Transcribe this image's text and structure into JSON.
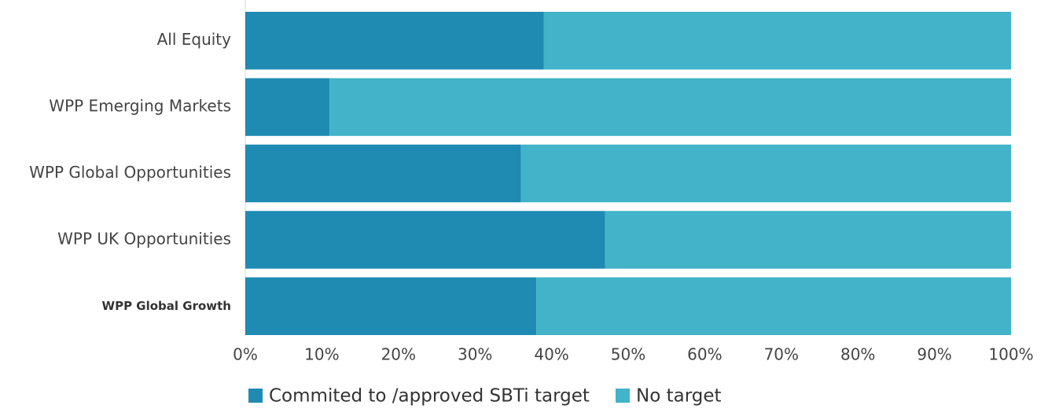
{
  "chart_data": {
    "type": "stacked_barh",
    "categories": [
      "All Equity",
      "WPP Emerging Markets",
      "WPP Global Opportunities",
      "WPP UK Opportunities",
      "WPP Global Growth"
    ],
    "series": [
      {
        "name": "Commited to /approved SBTi target",
        "color": "#1f8bb3",
        "values": [
          39,
          11,
          36,
          47,
          38
        ]
      },
      {
        "name": "No target",
        "color": "#42b3c8",
        "values": [
          61,
          89,
          64,
          53,
          62
        ]
      }
    ],
    "xlim": [
      0,
      100
    ],
    "xticks": [
      {
        "value": 0,
        "label": "0%"
      },
      {
        "value": 10,
        "label": "10%"
      },
      {
        "value": 20,
        "label": "20%"
      },
      {
        "value": 30,
        "label": "30%"
      },
      {
        "value": 40,
        "label": "40%"
      },
      {
        "value": 50,
        "label": "50%"
      },
      {
        "value": 60,
        "label": "60%"
      },
      {
        "value": 70,
        "label": "70%"
      },
      {
        "value": 80,
        "label": "80%"
      },
      {
        "value": 90,
        "label": "90%"
      },
      {
        "value": 100,
        "label": "100%"
      }
    ],
    "legend": "bottom"
  }
}
